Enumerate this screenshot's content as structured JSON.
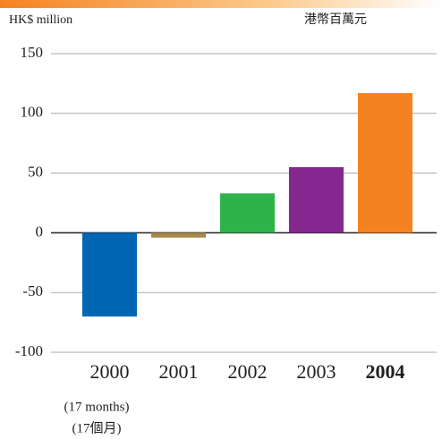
{
  "chart_data": {
    "type": "bar",
    "unit_left": "HK$ million",
    "unit_right": "港幣百萬元",
    "categories": [
      "2000",
      "2001",
      "2002",
      "2003",
      "2004"
    ],
    "category_notes": [
      "(17 months)",
      "(17個月)"
    ],
    "bold_index": 4,
    "values": [
      -70,
      -4,
      33,
      55,
      117
    ],
    "colors": [
      "#0066b3",
      "#a8894a",
      "#2db34a",
      "#84278f",
      "#f58220"
    ],
    "ylim": [
      -100,
      150
    ],
    "yticks": [
      -100,
      -50,
      0,
      50,
      100,
      150
    ],
    "grid": true
  }
}
